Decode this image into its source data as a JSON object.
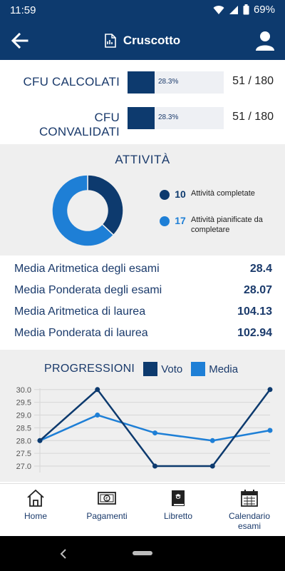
{
  "status_bar": {
    "time": "11:59",
    "battery": "69%"
  },
  "app_bar": {
    "title": "Cruscotto"
  },
  "cfu": [
    {
      "label": "CFU CALCOLATI",
      "percent_text": "28.3%",
      "fraction": 0.283,
      "value": "51 / 180"
    },
    {
      "label": "CFU CONVALIDATI",
      "percent_text": "28.3%",
      "fraction": 0.283,
      "value": "51 / 180"
    }
  ],
  "attivita": {
    "title": "ATTIVITÀ",
    "items": [
      {
        "count": "10",
        "label": "Attività completate",
        "color": "#0d3a6e"
      },
      {
        "count": "17",
        "label": "Attività pianificate da completare",
        "color": "#1e7fd6"
      }
    ]
  },
  "medie": [
    {
      "label": "Media Aritmetica degli esami",
      "value": "28.4"
    },
    {
      "label": "Media Ponderata degli esami",
      "value": "28.07"
    },
    {
      "label": "Media Aritmetica di laurea",
      "value": "104.13"
    },
    {
      "label": "Media Ponderata di laurea",
      "value": "102.94"
    }
  ],
  "progressioni": {
    "title": "PROGRESSIONI",
    "legend_voto": "Voto",
    "legend_media": "Media"
  },
  "chart_data": {
    "type": "line",
    "x": [
      1,
      2,
      3,
      4,
      5
    ],
    "series": [
      {
        "name": "Voto",
        "values": [
          28.0,
          30.0,
          27.0,
          27.0,
          30.0
        ],
        "color": "#0d3a6e"
      },
      {
        "name": "Media",
        "values": [
          28.0,
          29.0,
          28.3,
          28.0,
          28.4
        ],
        "color": "#1e7fd6"
      }
    ],
    "yticks": [
      "30.0",
      "29.5",
      "29.0",
      "28.5",
      "28.0",
      "27.5",
      "27.0"
    ],
    "ylim": [
      26.75,
      30.05
    ],
    "grid": true
  },
  "bottom_nav": [
    {
      "label": "Home",
      "icon": "home-icon"
    },
    {
      "label": "Pagamenti",
      "icon": "money-icon"
    },
    {
      "label": "Libretto",
      "icon": "book-icon"
    },
    {
      "label": "Calendario\nesami",
      "icon": "calendar-icon"
    }
  ],
  "colors": {
    "primary": "#0d3a6e",
    "accent": "#1e7fd6",
    "panel": "#efefef"
  }
}
